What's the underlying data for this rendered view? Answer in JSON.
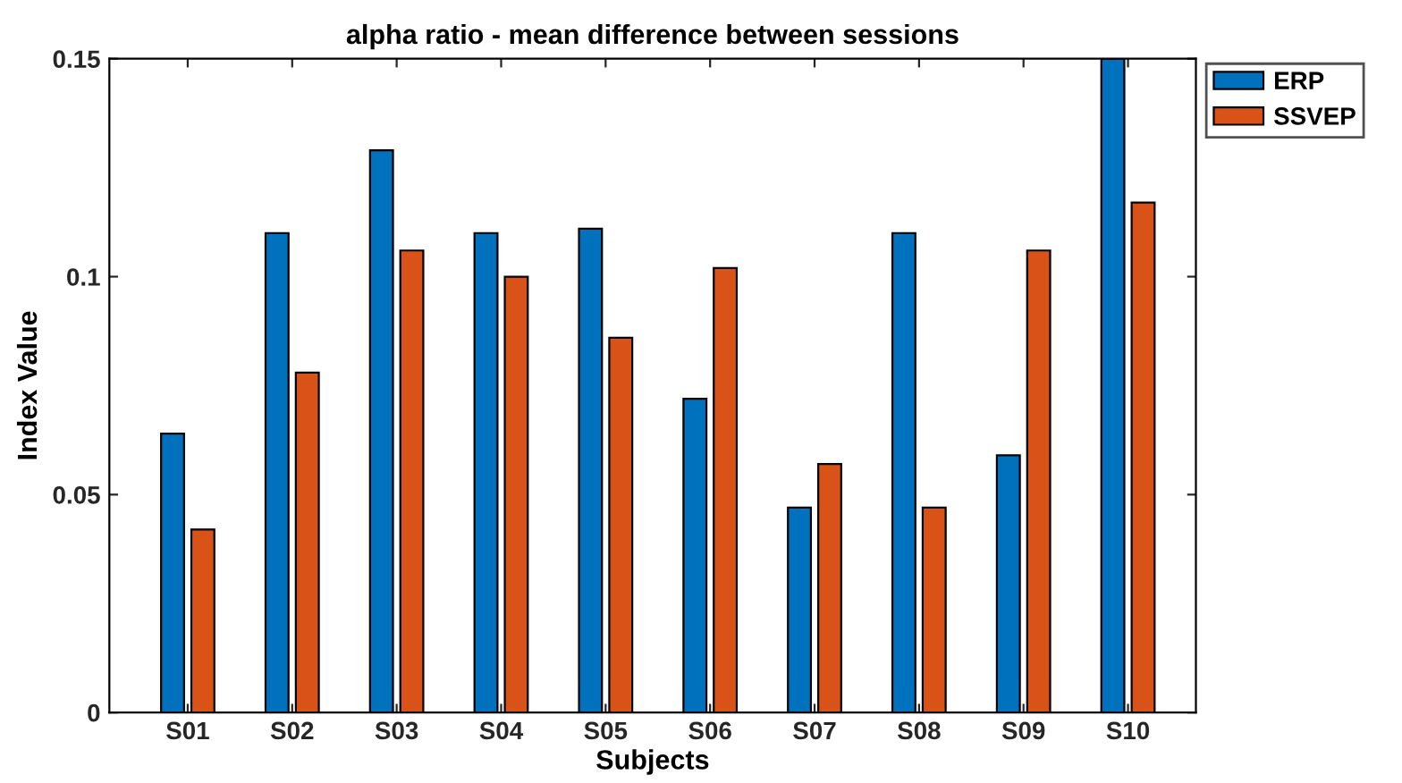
{
  "chart_data": {
    "type": "bar",
    "title": "alpha ratio - mean difference between sessions",
    "xlabel": "Subjects",
    "ylabel": "Index Value",
    "categories": [
      "S01",
      "S02",
      "S03",
      "S04",
      "S05",
      "S06",
      "S07",
      "S08",
      "S09",
      "S10"
    ],
    "series": [
      {
        "name": "ERP",
        "color": "#0072bd",
        "values": [
          0.064,
          0.11,
          0.129,
          0.11,
          0.111,
          0.072,
          0.047,
          0.11,
          0.059,
          0.15
        ]
      },
      {
        "name": "SSVEP",
        "color": "#d95319",
        "values": [
          0.042,
          0.078,
          0.106,
          0.1,
          0.086,
          0.102,
          0.057,
          0.047,
          0.106,
          0.117
        ]
      }
    ],
    "ylim": [
      0,
      0.15
    ],
    "yticks": [
      {
        "value": 0,
        "label": "0"
      },
      {
        "value": 0.05,
        "label": "0.05"
      },
      {
        "value": 0.1,
        "label": "0.1"
      },
      {
        "value": 0.15,
        "label": "0.15"
      }
    ],
    "grid": false,
    "legend": "top right"
  }
}
